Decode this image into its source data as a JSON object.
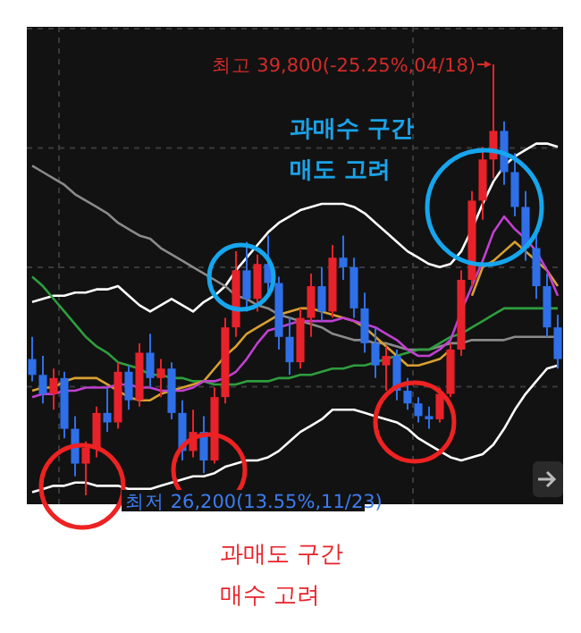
{
  "chart_data": {
    "type": "candlestick",
    "categories": [
      null,
      null,
      null,
      null,
      null,
      null,
      null,
      null,
      null,
      null,
      null,
      null,
      null,
      null,
      null,
      null,
      null,
      null,
      null,
      null,
      null,
      null,
      null,
      null,
      null,
      null,
      null,
      null,
      null,
      null,
      null,
      null,
      null,
      null,
      null,
      null,
      null,
      null,
      null,
      null,
      null,
      null,
      null,
      null,
      null,
      null,
      null,
      null,
      null,
      null
    ],
    "ohlc": [
      [
        30500,
        31200,
        29800,
        30000
      ],
      [
        30000,
        30600,
        29100,
        29400
      ],
      [
        29400,
        30200,
        28900,
        29900
      ],
      [
        29900,
        30100,
        28000,
        28300
      ],
      [
        28300,
        28700,
        26800,
        27200
      ],
      [
        27200,
        27900,
        26200,
        27700
      ],
      [
        27700,
        29000,
        27400,
        28800
      ],
      [
        28800,
        29600,
        28200,
        28500
      ],
      [
        28500,
        30400,
        28300,
        30100
      ],
      [
        30100,
        30300,
        28900,
        29200
      ],
      [
        29200,
        31000,
        29000,
        30700
      ],
      [
        30700,
        31300,
        29600,
        29900
      ],
      [
        29900,
        30500,
        29300,
        30200
      ],
      [
        30200,
        30400,
        28600,
        28800
      ],
      [
        28800,
        29200,
        27300,
        27600
      ],
      [
        27600,
        28900,
        27400,
        28200
      ],
      [
        28200,
        28700,
        26900,
        27300
      ],
      [
        27300,
        29600,
        27200,
        29300
      ],
      [
        29300,
        31800,
        29100,
        31500
      ],
      [
        31500,
        33900,
        31200,
        33300
      ],
      [
        33300,
        34200,
        32000,
        32400
      ],
      [
        32400,
        33800,
        32000,
        33500
      ],
      [
        33500,
        34400,
        32600,
        32900
      ],
      [
        32900,
        33100,
        30800,
        31200
      ],
      [
        31200,
        31800,
        30000,
        30400
      ],
      [
        30400,
        32100,
        30200,
        31800
      ],
      [
        31800,
        33200,
        31200,
        32800
      ],
      [
        32800,
        33400,
        31700,
        32000
      ],
      [
        32000,
        34100,
        31800,
        33700
      ],
      [
        33700,
        34400,
        33000,
        33400
      ],
      [
        33400,
        33700,
        31800,
        32100
      ],
      [
        32100,
        32600,
        30700,
        31000
      ],
      [
        31000,
        31500,
        29900,
        30300
      ],
      [
        30300,
        30900,
        29500,
        30600
      ],
      [
        30600,
        30800,
        29200,
        29500
      ],
      [
        29500,
        29900,
        28900,
        29100
      ],
      [
        29100,
        29300,
        28500,
        28700
      ],
      [
        28700,
        29000,
        28300,
        28600
      ],
      [
        28600,
        29600,
        28500,
        29400
      ],
      [
        29400,
        31000,
        29300,
        30800
      ],
      [
        30800,
        33300,
        30600,
        33000
      ],
      [
        33000,
        35800,
        32800,
        35500
      ],
      [
        35500,
        37200,
        34900,
        36800
      ],
      [
        36800,
        39800,
        36200,
        37700
      ],
      [
        37700,
        38000,
        36000,
        36400
      ],
      [
        36400,
        37000,
        35000,
        35300
      ],
      [
        35300,
        35800,
        33600,
        34000
      ],
      [
        34000,
        34600,
        32400,
        32800
      ],
      [
        32800,
        33200,
        31200,
        31500
      ],
      [
        31500,
        31900,
        30200,
        30500
      ]
    ],
    "series": [
      {
        "type": "line",
        "color": "#ffffff",
        "values": [
          32300,
          32400,
          32500,
          32500,
          32600,
          32600,
          32700,
          32700,
          32800,
          32500,
          32200,
          32000,
          32200,
          32400,
          32200,
          32000,
          32300,
          32500,
          32800,
          33300,
          33700,
          34100,
          34500,
          34800,
          35000,
          35200,
          35300,
          35400,
          35400,
          35400,
          35300,
          35100,
          34800,
          34500,
          34200,
          33900,
          33700,
          33500,
          33400,
          33500,
          33900,
          34600,
          35400,
          36100,
          36600,
          36900,
          37100,
          37300,
          37300,
          37200
        ]
      },
      {
        "type": "line",
        "color": "#ffffff",
        "values": [
          26300,
          26400,
          26500,
          26500,
          26600,
          26600,
          26500,
          26500,
          26500,
          26400,
          26400,
          26400,
          26500,
          26600,
          26700,
          26800,
          26800,
          26900,
          27100,
          27200,
          27300,
          27300,
          27400,
          27600,
          27900,
          28200,
          28400,
          28600,
          28900,
          28900,
          28900,
          28800,
          28700,
          28600,
          28500,
          28300,
          28000,
          27800,
          27600,
          27400,
          27300,
          27400,
          27500,
          27800,
          28300,
          28900,
          29400,
          29800,
          30200,
          30300
        ]
      },
      {
        "type": "line",
        "color": "#8a8a8a",
        "values": [
          36600,
          36400,
          36200,
          36000,
          35700,
          35500,
          35300,
          35100,
          34800,
          34600,
          34400,
          34300,
          34000,
          33800,
          33600,
          33400,
          33200,
          33000,
          32800,
          32500,
          32400,
          32200,
          32100,
          31900,
          31800,
          31700,
          31600,
          31500,
          31300,
          31200,
          31100,
          31100,
          31000,
          31000,
          30900,
          30800,
          30800,
          30800,
          30900,
          31000,
          31000,
          31100,
          31100,
          31100,
          31100,
          31200,
          31200,
          31200,
          31200,
          31200
        ]
      },
      {
        "type": "line",
        "color": "#2e9e3e",
        "values": [
          33100,
          32800,
          32400,
          32000,
          31600,
          31200,
          30900,
          30700,
          30400,
          30300,
          30200,
          30000,
          30000,
          29900,
          29900,
          29800,
          29800,
          29700,
          29700,
          29700,
          29800,
          29800,
          29800,
          29900,
          29900,
          30000,
          30000,
          30100,
          30200,
          30200,
          30300,
          30300,
          30400,
          30500,
          30600,
          30700,
          30800,
          30800,
          31000,
          31200,
          31300,
          31500,
          31700,
          31900,
          32100,
          32100,
          32100,
          32100,
          32100,
          32100
        ]
      },
      {
        "type": "line",
        "color": "#d9a030",
        "values": [
          29500,
          29600,
          29600,
          29800,
          29900,
          29900,
          29900,
          29700,
          29500,
          29300,
          29200,
          29200,
          29400,
          29500,
          29600,
          29700,
          29800,
          30200,
          30600,
          30900,
          31300,
          31500,
          31700,
          31900,
          32000,
          32100,
          32100,
          32000,
          31900,
          31800,
          31700,
          31500,
          31200,
          30900,
          30600,
          30300,
          30300,
          30400,
          30500,
          30800,
          null,
          32500,
          33400,
          33600,
          33900,
          34200,
          33900,
          33600,
          33300,
          32800
        ]
      },
      {
        "type": "line",
        "color": "#c040d0",
        "values": [
          29300,
          29400,
          29400,
          29500,
          29500,
          29600,
          29600,
          29600,
          29700,
          29700,
          29600,
          29600,
          29500,
          29500,
          29500,
          29600,
          29800,
          29800,
          29900,
          30100,
          30500,
          31000,
          31400,
          31500,
          31600,
          31700,
          31700,
          31700,
          31700,
          31800,
          31700,
          31600,
          31500,
          31300,
          31100,
          30800,
          30600,
          30600,
          30800,
          31100,
          32000,
          32800,
          33600,
          34500,
          35000,
          34600,
          34300,
          33900,
          33300,
          32500
        ]
      }
    ],
    "annotations": [
      "최고 39,800(-25.25%,04/18)",
      "최저 26,200(13.55%,11/23)",
      "과매수 구간\n매도 고려",
      "과매도 구간\n매수 고려"
    ],
    "grid": true
  }
}
